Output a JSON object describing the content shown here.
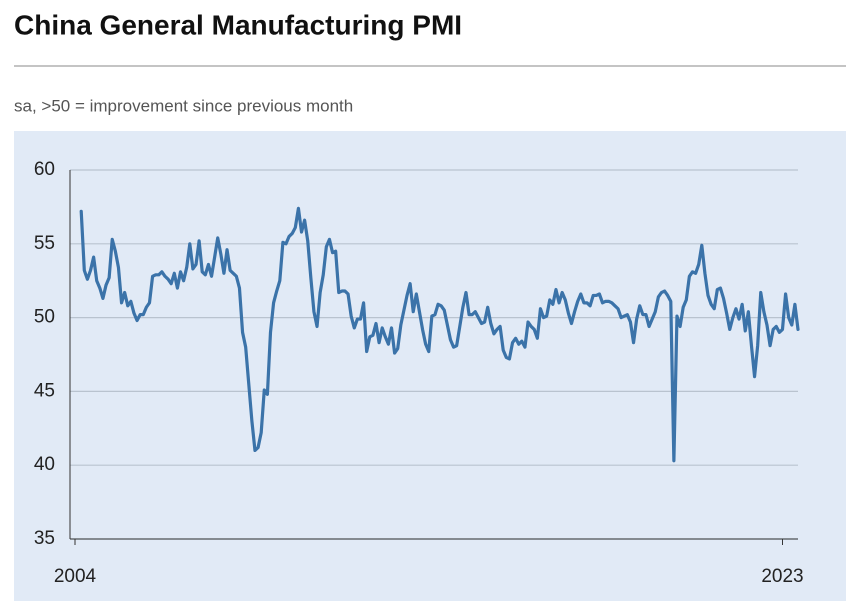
{
  "chart_data": {
    "type": "line",
    "title": "China General Manufacturing PMI",
    "subtitle": "sa, >50 = improvement since previous month",
    "color": "#3b73a9",
    "grid": true,
    "ylim": [
      35,
      60
    ],
    "yticks": [
      35,
      40,
      45,
      50,
      55,
      60
    ],
    "categories": [
      "2004",
      null,
      null,
      null,
      null,
      null,
      null,
      null,
      null,
      null,
      null,
      null,
      null,
      null,
      null,
      null,
      null,
      null,
      null,
      null,
      null,
      null,
      null,
      null,
      null,
      null,
      null,
      null,
      null,
      null,
      null,
      null,
      null,
      null,
      null,
      null,
      null,
      null,
      null,
      null,
      null,
      null,
      null,
      null,
      null,
      null,
      null,
      null,
      null,
      null,
      null,
      null,
      null,
      null,
      null,
      null,
      null,
      null,
      null,
      null,
      null,
      null,
      null,
      null,
      null,
      null,
      null,
      null,
      null,
      null,
      null,
      null,
      null,
      null,
      null,
      null,
      null,
      null,
      null,
      null,
      null,
      null,
      null,
      null,
      null,
      null,
      null,
      null,
      null,
      null,
      null,
      null,
      null,
      null,
      null,
      null,
      null,
      null,
      null,
      null,
      null,
      null,
      null,
      null,
      null,
      null,
      null,
      null,
      null,
      null,
      null,
      null,
      null,
      null,
      null,
      null,
      null,
      null,
      null,
      null,
      null,
      null,
      null,
      null,
      null,
      null,
      null,
      null,
      null,
      null,
      null,
      null,
      null,
      null,
      null,
      null,
      null,
      null,
      null,
      null,
      null,
      null,
      null,
      null,
      null,
      null,
      null,
      null,
      null,
      null,
      null,
      null,
      null,
      null,
      null,
      null,
      null,
      null,
      null,
      null,
      null,
      null,
      null,
      null,
      null,
      null,
      null,
      null,
      null,
      null,
      null,
      null,
      null,
      null,
      null,
      null,
      null,
      null,
      null,
      null,
      null,
      null,
      null,
      null,
      null,
      null,
      null,
      null,
      null,
      null,
      null,
      null,
      null,
      null,
      null,
      null,
      null,
      null,
      null,
      null,
      null,
      null,
      null,
      null,
      null,
      null,
      null,
      null,
      null,
      null,
      null,
      null,
      null,
      null,
      null,
      null,
      null,
      null,
      null,
      null,
      null,
      null,
      null,
      null,
      null,
      null,
      null,
      null,
      "2023",
      null,
      null,
      null,
      null,
      null
    ],
    "values": [
      null,
      null,
      57.2,
      53.2,
      52.6,
      53.2,
      54.1,
      52.5,
      52.0,
      51.3,
      52.2,
      52.7,
      55.3,
      54.5,
      53.4,
      51.0,
      51.7,
      50.8,
      51.1,
      50.3,
      49.8,
      50.2,
      50.2,
      50.7,
      51.0,
      52.8,
      52.9,
      52.9,
      53.1,
      52.8,
      52.6,
      52.3,
      53.0,
      52.0,
      53.1,
      52.5,
      53.4,
      55.0,
      53.3,
      53.6,
      55.2,
      53.1,
      52.9,
      53.6,
      52.8,
      54.1,
      55.4,
      54.3,
      53.0,
      54.6,
      53.2,
      53.0,
      52.8,
      52.0,
      49.0,
      48.0,
      45.5,
      43.0,
      41.0,
      41.2,
      42.2,
      45.1,
      44.8,
      49.0,
      51.0,
      51.8,
      52.5,
      55.1,
      55.0,
      55.5,
      55.7,
      56.1,
      57.4,
      55.8,
      56.6,
      55.2,
      52.7,
      50.4,
      49.4,
      51.7,
      52.9,
      54.8,
      55.3,
      54.4,
      54.5,
      51.7,
      51.8,
      51.8,
      51.6,
      50.1,
      49.3,
      49.9,
      49.9,
      51.0,
      47.7,
      48.7,
      48.8,
      49.6,
      48.3,
      49.3,
      48.7,
      48.2,
      49.3,
      47.6,
      47.9,
      49.5,
      50.5,
      51.5,
      52.3,
      50.4,
      51.6,
      50.4,
      49.2,
      48.2,
      47.7,
      50.1,
      50.2,
      50.9,
      50.8,
      50.5,
      49.5,
      48.5,
      48.0,
      48.1,
      49.4,
      50.7,
      51.7,
      50.2,
      50.2,
      50.4,
      50.0,
      49.6,
      49.7,
      50.7,
      49.6,
      48.9,
      49.2,
      49.4,
      47.8,
      47.3,
      47.2,
      48.3,
      48.6,
      48.2,
      48.4,
      48.0,
      49.7,
      49.4,
      49.2,
      48.6,
      50.6,
      50.0,
      50.1,
      51.2,
      50.9,
      51.9,
      51.0,
      51.7,
      51.2,
      50.3,
      49.6,
      50.4,
      51.1,
      51.6,
      51.0,
      51.0,
      50.8,
      51.5,
      51.5,
      51.6,
      51.0,
      51.1,
      51.1,
      51.0,
      50.8,
      50.6,
      50.0,
      50.1,
      50.2,
      49.7,
      48.3,
      49.9,
      50.8,
      50.2,
      50.2,
      49.4,
      49.9,
      50.4,
      51.4,
      51.7,
      51.8,
      51.5,
      51.1,
      40.3,
      50.1,
      49.4,
      50.7,
      51.2,
      52.8,
      53.1,
      53.0,
      53.6,
      54.9,
      53.0,
      51.5,
      50.9,
      50.6,
      51.9,
      52.0,
      51.3,
      50.3,
      49.2,
      50.0,
      50.6,
      49.9,
      50.9,
      49.1,
      50.4,
      48.1,
      46.0,
      48.1,
      51.7,
      50.4,
      49.5,
      48.1,
      49.2,
      49.4,
      49.0,
      49.2,
      51.6,
      50.0,
      49.5,
      50.9,
      49.2
    ]
  }
}
